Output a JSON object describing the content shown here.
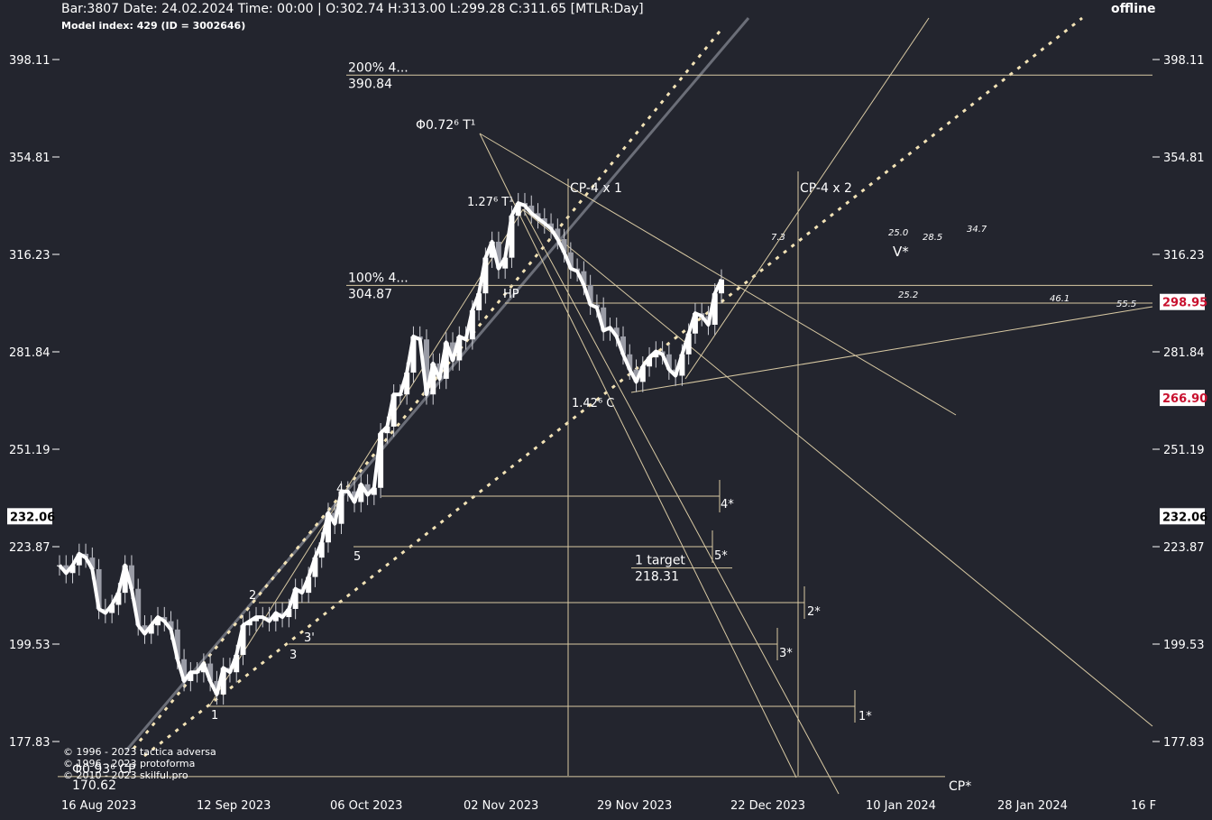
{
  "header": {
    "bar_info": "Bar:3807 Date: 24.02.2024 Time: 00:00 | O:302.74 H:313.00 L:299.28 C:311.65 [MTLR:Day]",
    "model_index": "Model index: 429  (ID = 3002646)",
    "status": "offline"
  },
  "copyrights": [
    "© 1996 - 2023 tactica adversa",
    "© 1996 - 2023 protoforma",
    "© 2010 - 2023 skilful.pro"
  ],
  "chart_data": {
    "type": "candlestick",
    "instrument": "MTLR",
    "timeframe": "Day",
    "ylim": [
      166.5,
      410
    ],
    "y_ticks": [
      398.11,
      354.81,
      316.23,
      281.84,
      251.19,
      223.87,
      199.53,
      177.83
    ],
    "x_ticks": [
      "16 Aug 2023",
      "12 Sep 2023",
      "06 Oct 2023",
      "02 Nov 2023",
      "29 Nov 2023",
      "22 Dec 2023",
      "10 Jan 2024",
      "28 Jan 2024",
      "16 F"
    ],
    "price_badges": [
      {
        "side": "left",
        "value": "232.06",
        "color": "#ffffff",
        "text_color": "#000000"
      },
      {
        "side": "right",
        "value": "232.06",
        "color": "#ffffff",
        "text_color": "#000000"
      },
      {
        "side": "right",
        "value": "298.95",
        "color": "#ffffff",
        "text_color": "#c8102e"
      },
      {
        "side": "right",
        "value": "266.90",
        "color": "#ffffff",
        "text_color": "#c8102e"
      }
    ],
    "close_series": [
      219,
      217,
      219,
      222,
      221,
      218,
      208,
      207,
      209,
      212,
      219,
      213,
      204,
      202,
      204,
      206,
      205,
      203,
      196,
      191,
      193,
      193,
      195,
      191,
      188,
      194,
      193,
      197,
      204,
      205,
      206,
      206,
      205,
      207,
      206,
      208,
      213,
      212,
      216,
      221,
      225,
      233,
      230,
      239,
      239,
      236,
      241,
      238,
      240,
      256,
      258,
      268,
      268,
      275,
      287,
      286,
      268,
      278,
      273,
      285,
      279,
      287,
      286,
      296,
      302,
      315,
      321,
      311,
      315,
      331,
      336,
      335,
      332,
      330,
      328,
      326,
      322,
      317,
      311,
      310,
      305,
      298,
      297,
      289,
      290,
      287,
      281,
      276,
      272,
      277,
      280,
      282,
      281,
      276,
      274,
      281,
      288,
      295,
      294,
      291,
      302,
      307
    ],
    "levels": [
      {
        "label_top": "200%  4...",
        "label_bottom": "390.84",
        "price": 390.84
      },
      {
        "label_top": "100%  4...",
        "label_bottom": "304.87",
        "price": 304.87
      },
      {
        "label_top": "1 target",
        "label_bottom": "218.31",
        "price": 218.31
      },
      {
        "label_top": "Φ0.93⁶ CP",
        "label_bottom": "170.62",
        "price": 170.62
      }
    ],
    "annotations": [
      "Φ0.72⁶ T¹",
      "1.27⁶ T¹",
      "1.42⁶ C",
      "HP",
      "CP-4 x 1",
      "CP-4 x 2",
      "CP*",
      "1",
      "2",
      "3",
      "3'",
      "4",
      "5",
      "1*",
      "2*",
      "3*",
      "4*",
      "5*",
      "7.3",
      "25.0",
      "28.5",
      "34.7",
      "V*",
      "25.2",
      "46.1",
      "55.5"
    ]
  },
  "colors": {
    "background": "#23252e",
    "lines": "#d8c9a3",
    "dotted": "#f3e3b6",
    "price": "#ffffff",
    "grey_channel": "#6b6e78"
  }
}
